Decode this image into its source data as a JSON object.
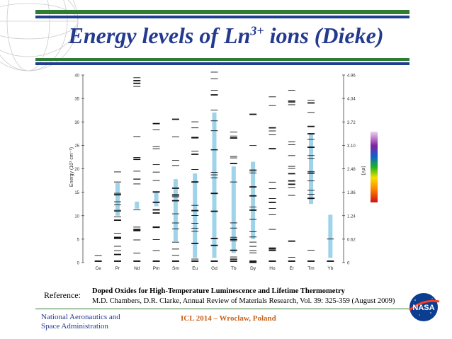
{
  "slide": {
    "title_main": "Energy levels of Ln",
    "title_sup": "3+",
    "title_end": " ions (Dieke)"
  },
  "figure": {
    "y_axis_label": "Energy (10³ cm⁻¹)",
    "y_ticks": [
      "0",
      "5",
      "10",
      "15",
      "20",
      "25",
      "30",
      "35",
      "40"
    ],
    "right_axis_label": "(eV)",
    "right_ticks": [
      "0",
      "0.62",
      "1.24",
      "1.86",
      "2.48",
      "3.10",
      "3.72",
      "4.34",
      "4.96"
    ],
    "ions": [
      "Ce",
      "Pr",
      "Nd",
      "Pm",
      "Sm",
      "Eu",
      "Gd",
      "Tb",
      "Dy",
      "Ho",
      "Er",
      "Tm",
      "Yb"
    ]
  },
  "reference": {
    "label": "Reference:",
    "title": "Doped Oxides for High-Temperature Luminescence and Lifetime Thermometry",
    "body": "M.D. Chambers,  D.R. Clarke, Annual Review of Materials Research, Vol. 39: 325-359 (August 2009)"
  },
  "footer": {
    "org_line1": "National Aeronautics and",
    "org_line2": "Space Administration",
    "conference": "ICL 2014 – Wroclaw, Poland",
    "logo_text": "NASA"
  },
  "colors": {
    "title": "#233a8f",
    "green": "#2e7d32",
    "blue": "#1f3f8f",
    "bar_fill": "#9fd3ea",
    "conference": "#c8641e"
  }
}
